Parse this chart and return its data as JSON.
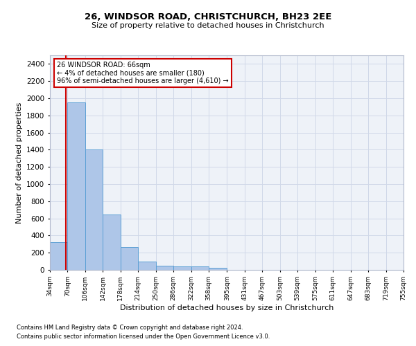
{
  "title": "26, WINDSOR ROAD, CHRISTCHURCH, BH23 2EE",
  "subtitle": "Size of property relative to detached houses in Christchurch",
  "xlabel": "Distribution of detached houses by size in Christchurch",
  "ylabel": "Number of detached properties",
  "footnote1": "Contains HM Land Registry data © Crown copyright and database right 2024.",
  "footnote2": "Contains public sector information licensed under the Open Government Licence v3.0.",
  "bar_edges": [
    34,
    70,
    106,
    142,
    178,
    214,
    250,
    286,
    322,
    358,
    395,
    431,
    467,
    503,
    539,
    575,
    611,
    647,
    683,
    719,
    755
  ],
  "bar_heights": [
    325,
    1950,
    1400,
    645,
    270,
    100,
    48,
    42,
    38,
    25,
    0,
    0,
    0,
    0,
    0,
    0,
    0,
    0,
    0,
    0
  ],
  "bar_color": "#aec6e8",
  "bar_edgecolor": "#5a9fd4",
  "grid_color": "#d0d8e8",
  "bg_color": "#eef2f8",
  "property_line_x": 66,
  "property_line_color": "#cc0000",
  "annotation_line1": "26 WINDSOR ROAD: 66sqm",
  "annotation_line2": "← 4% of detached houses are smaller (180)",
  "annotation_line3": "96% of semi-detached houses are larger (4,610) →",
  "annotation_box_color": "#cc0000",
  "ylim": [
    0,
    2500
  ],
  "yticks": [
    0,
    200,
    400,
    600,
    800,
    1000,
    1200,
    1400,
    1600,
    1800,
    2000,
    2200,
    2400
  ],
  "tick_labels": [
    "34sqm",
    "70sqm",
    "106sqm",
    "142sqm",
    "178sqm",
    "214sqm",
    "250sqm",
    "286sqm",
    "322sqm",
    "358sqm",
    "395sqm",
    "431sqm",
    "467sqm",
    "503sqm",
    "539sqm",
    "575sqm",
    "611sqm",
    "647sqm",
    "683sqm",
    "719sqm",
    "755sqm"
  ]
}
